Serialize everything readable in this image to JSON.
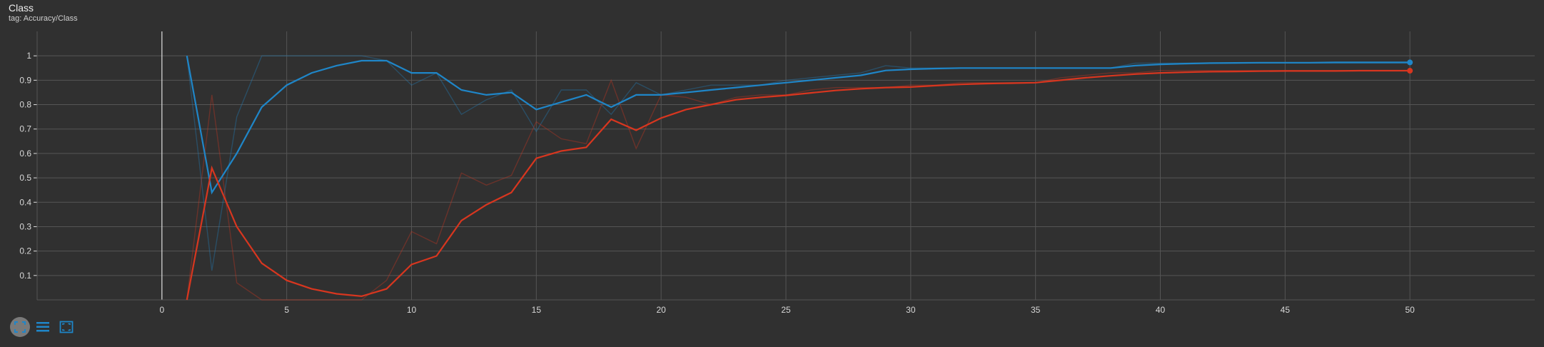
{
  "header": {
    "title": "Class",
    "subtitle": "tag: Accuracy/Class"
  },
  "toolbar": {
    "buttons": [
      {
        "name": "fit-domain-icon"
      },
      {
        "name": "toggle-log-icon"
      },
      {
        "name": "expand-chart-icon"
      }
    ]
  },
  "colors": {
    "background": "#303030",
    "grid": "#555555",
    "axis": "#e0e0e0",
    "blue": "#1f86c8",
    "red": "#d8361f"
  },
  "chart_data": {
    "type": "line",
    "title": "Class",
    "subtitle": "tag: Accuracy/Class",
    "xlim": [
      -5,
      55
    ],
    "ylim": [
      0,
      1.1
    ],
    "xticks": [
      0,
      5,
      10,
      15,
      20,
      25,
      30,
      35,
      40,
      45,
      50
    ],
    "yticks": [
      0.1,
      0.2,
      0.3,
      0.4,
      0.5,
      0.6,
      0.7,
      0.8,
      0.9,
      1
    ],
    "grid": true,
    "series": [
      {
        "color": "#1f86c8",
        "raw": [
          [
            1,
            1.0
          ],
          [
            2,
            0.12
          ],
          [
            3,
            0.75
          ],
          [
            4,
            1.0
          ],
          [
            5,
            1.0
          ],
          [
            6,
            1.0
          ],
          [
            7,
            1.0
          ],
          [
            8,
            1.0
          ],
          [
            9,
            0.98
          ],
          [
            10,
            0.88
          ],
          [
            11,
            0.93
          ],
          [
            12,
            0.76
          ],
          [
            13,
            0.82
          ],
          [
            14,
            0.86
          ],
          [
            15,
            0.69
          ],
          [
            16,
            0.86
          ],
          [
            17,
            0.86
          ],
          [
            18,
            0.76
          ],
          [
            19,
            0.89
          ],
          [
            20,
            0.84
          ],
          [
            21,
            0.86
          ],
          [
            22,
            0.88
          ],
          [
            23,
            0.88
          ],
          [
            24,
            0.88
          ],
          [
            25,
            0.9
          ],
          [
            26,
            0.91
          ],
          [
            27,
            0.92
          ],
          [
            28,
            0.93
          ],
          [
            29,
            0.96
          ],
          [
            30,
            0.95
          ],
          [
            31,
            0.95
          ],
          [
            32,
            0.95
          ],
          [
            33,
            0.95
          ],
          [
            34,
            0.95
          ],
          [
            35,
            0.95
          ],
          [
            36,
            0.95
          ],
          [
            37,
            0.95
          ],
          [
            38,
            0.95
          ],
          [
            39,
            0.97
          ],
          [
            40,
            0.97
          ],
          [
            41,
            0.97
          ],
          [
            42,
            0.97
          ],
          [
            43,
            0.97
          ],
          [
            44,
            0.97
          ],
          [
            45,
            0.97
          ],
          [
            46,
            0.97
          ],
          [
            47,
            0.97
          ],
          [
            48,
            0.97
          ],
          [
            49,
            0.97
          ],
          [
            50,
            0.97
          ]
        ],
        "smoothed": [
          [
            1,
            1.0
          ],
          [
            2,
            0.44
          ],
          [
            3,
            0.6
          ],
          [
            4,
            0.79
          ],
          [
            5,
            0.88
          ],
          [
            6,
            0.93
          ],
          [
            7,
            0.96
          ],
          [
            8,
            0.98
          ],
          [
            9,
            0.98
          ],
          [
            10,
            0.93
          ],
          [
            11,
            0.93
          ],
          [
            12,
            0.86
          ],
          [
            13,
            0.84
          ],
          [
            14,
            0.85
          ],
          [
            15,
            0.78
          ],
          [
            16,
            0.81
          ],
          [
            17,
            0.84
          ],
          [
            18,
            0.79
          ],
          [
            19,
            0.84
          ],
          [
            20,
            0.84
          ],
          [
            21,
            0.85
          ],
          [
            22,
            0.86
          ],
          [
            23,
            0.87
          ],
          [
            24,
            0.88
          ],
          [
            25,
            0.89
          ],
          [
            26,
            0.9
          ],
          [
            27,
            0.91
          ],
          [
            28,
            0.92
          ],
          [
            29,
            0.94
          ],
          [
            30,
            0.945
          ],
          [
            31,
            0.948
          ],
          [
            32,
            0.95
          ],
          [
            33,
            0.95
          ],
          [
            34,
            0.95
          ],
          [
            35,
            0.95
          ],
          [
            36,
            0.95
          ],
          [
            37,
            0.95
          ],
          [
            38,
            0.95
          ],
          [
            39,
            0.96
          ],
          [
            40,
            0.965
          ],
          [
            41,
            0.968
          ],
          [
            42,
            0.97
          ],
          [
            43,
            0.971
          ],
          [
            44,
            0.972
          ],
          [
            45,
            0.972
          ],
          [
            46,
            0.972
          ],
          [
            47,
            0.973
          ],
          [
            48,
            0.973
          ],
          [
            49,
            0.973
          ],
          [
            50,
            0.973
          ]
        ]
      },
      {
        "color": "#d8361f",
        "raw": [
          [
            1,
            0.0
          ],
          [
            2,
            0.84
          ],
          [
            3,
            0.07
          ],
          [
            4,
            0.0
          ],
          [
            5,
            0.0
          ],
          [
            6,
            0.0
          ],
          [
            7,
            0.0
          ],
          [
            8,
            0.0
          ],
          [
            9,
            0.08
          ],
          [
            10,
            0.28
          ],
          [
            11,
            0.23
          ],
          [
            12,
            0.52
          ],
          [
            13,
            0.47
          ],
          [
            14,
            0.51
          ],
          [
            15,
            0.73
          ],
          [
            16,
            0.66
          ],
          [
            17,
            0.64
          ],
          [
            18,
            0.9
          ],
          [
            19,
            0.62
          ],
          [
            20,
            0.84
          ],
          [
            21,
            0.83
          ],
          [
            22,
            0.8
          ],
          [
            23,
            0.83
          ],
          [
            24,
            0.84
          ],
          [
            25,
            0.84
          ],
          [
            26,
            0.86
          ],
          [
            27,
            0.87
          ],
          [
            28,
            0.87
          ],
          [
            29,
            0.87
          ],
          [
            30,
            0.88
          ],
          [
            31,
            0.88
          ],
          [
            32,
            0.89
          ],
          [
            33,
            0.89
          ],
          [
            34,
            0.89
          ],
          [
            35,
            0.89
          ],
          [
            36,
            0.91
          ],
          [
            37,
            0.92
          ],
          [
            38,
            0.93
          ],
          [
            39,
            0.93
          ],
          [
            40,
            0.94
          ],
          [
            41,
            0.94
          ],
          [
            42,
            0.94
          ],
          [
            43,
            0.94
          ],
          [
            44,
            0.94
          ],
          [
            45,
            0.94
          ],
          [
            46,
            0.94
          ],
          [
            47,
            0.94
          ],
          [
            48,
            0.94
          ],
          [
            49,
            0.94
          ],
          [
            50,
            0.94
          ]
        ],
        "smoothed": [
          [
            1,
            0.0
          ],
          [
            2,
            0.54
          ],
          [
            3,
            0.3
          ],
          [
            4,
            0.15
          ],
          [
            5,
            0.08
          ],
          [
            6,
            0.045
          ],
          [
            7,
            0.025
          ],
          [
            8,
            0.015
          ],
          [
            9,
            0.045
          ],
          [
            10,
            0.145
          ],
          [
            11,
            0.18
          ],
          [
            12,
            0.325
          ],
          [
            13,
            0.39
          ],
          [
            14,
            0.44
          ],
          [
            15,
            0.58
          ],
          [
            16,
            0.61
          ],
          [
            17,
            0.625
          ],
          [
            18,
            0.74
          ],
          [
            19,
            0.695
          ],
          [
            20,
            0.745
          ],
          [
            21,
            0.78
          ],
          [
            22,
            0.8
          ],
          [
            23,
            0.82
          ],
          [
            24,
            0.83
          ],
          [
            25,
            0.838
          ],
          [
            26,
            0.848
          ],
          [
            27,
            0.858
          ],
          [
            28,
            0.865
          ],
          [
            29,
            0.87
          ],
          [
            30,
            0.872
          ],
          [
            31,
            0.878
          ],
          [
            32,
            0.883
          ],
          [
            33,
            0.886
          ],
          [
            34,
            0.888
          ],
          [
            35,
            0.89
          ],
          [
            36,
            0.9
          ],
          [
            37,
            0.91
          ],
          [
            38,
            0.918
          ],
          [
            39,
            0.925
          ],
          [
            40,
            0.93
          ],
          [
            41,
            0.933
          ],
          [
            42,
            0.935
          ],
          [
            43,
            0.936
          ],
          [
            44,
            0.937
          ],
          [
            45,
            0.938
          ],
          [
            46,
            0.938
          ],
          [
            47,
            0.938
          ],
          [
            48,
            0.939
          ],
          [
            49,
            0.939
          ],
          [
            50,
            0.939
          ]
        ]
      }
    ]
  }
}
